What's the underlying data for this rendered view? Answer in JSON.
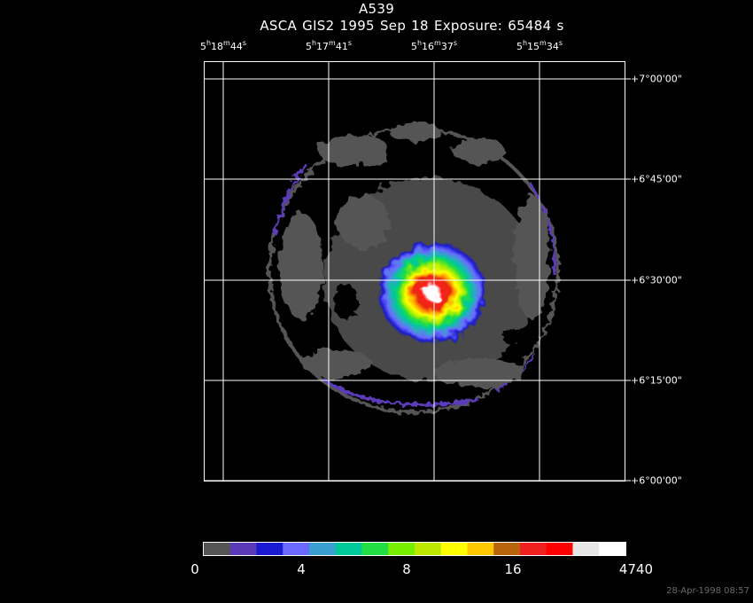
{
  "title": "A539",
  "subtitle": "ASCA GIS2   1995 Sep 18    Exposure: 65484 s",
  "ra_ticks": [
    {
      "h": "5",
      "m": "18",
      "s": "44"
    },
    {
      "h": "5",
      "m": "17",
      "s": "41"
    },
    {
      "h": "5",
      "m": "16",
      "s": "37"
    },
    {
      "h": "5",
      "m": "15",
      "s": "34"
    }
  ],
  "dec_ticks": [
    "+7°00'00\"",
    "+6°45'00\"",
    "+6°30'00\"",
    "+6°15'00\"",
    "+6°00'00\""
  ],
  "colorbar": {
    "labels": [
      "0",
      "4",
      "8",
      "16",
      "4740"
    ],
    "colors": [
      "#555555",
      "#5b3ab8",
      "#1a1ad2",
      "#6a6aff",
      "#3a9fcf",
      "#00c89a",
      "#22dd44",
      "#77ee00",
      "#bbe800",
      "#ffff00",
      "#ffc800",
      "#b8640c",
      "#ee2020",
      "#ff0000",
      "#e6e6e6",
      "#ffffff"
    ]
  },
  "image_colors": {
    "background": "#000000",
    "low": "#555555",
    "rim": "#5b3ab8",
    "grid": "#ffffff"
  },
  "timestamp": "28-Apr-1998 08:57"
}
